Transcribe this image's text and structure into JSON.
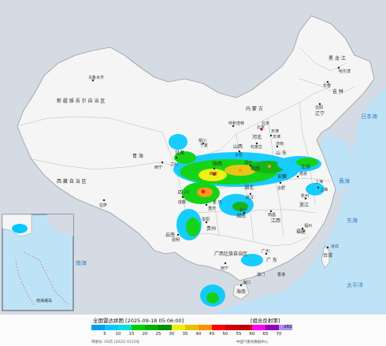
{
  "map": {
    "provinces": [
      "黑 龙 江",
      "吉 林",
      "辽宁",
      "内 蒙 古",
      "北京",
      "天津",
      "河北",
      "山西",
      "山 东",
      "河南",
      "陕西",
      "宁夏",
      "甘肃",
      "青 海",
      "新 疆 维 吾 尔 自 治 区",
      "西 藏 自 治 区",
      "四 川",
      "重 庆",
      "湖北",
      "湖南",
      "江西",
      "安徽",
      "江苏",
      "上海",
      "浙江",
      "福建",
      "台湾",
      "广 东",
      "广西壮族自治区",
      "贵州",
      "云南",
      "海南",
      "香港",
      "澳门"
    ],
    "cities": [
      "乌鲁木齐",
      "哈尔滨",
      "长春",
      "沈阳",
      "呼和浩特",
      "北京",
      "天津",
      "石家庄",
      "太原",
      "济南",
      "郑州",
      "西安",
      "银川",
      "兰州",
      "西宁",
      "拉萨",
      "成都",
      "重庆",
      "武汉",
      "长沙",
      "南昌",
      "合肥",
      "南京",
      "上海",
      "杭州",
      "福州",
      "台北",
      "广州",
      "南宁",
      "贵阳",
      "昆明",
      "海口"
    ],
    "seas": [
      "日本海",
      "黄海",
      "东海",
      "太平洋",
      "南海"
    ],
    "inset_seas": [
      "南海诸岛"
    ]
  },
  "legend": {
    "title": "全国雷达拼图 [2025-09-18 05:06:00]",
    "product": "[组合反射率]",
    "unit": "dBZ",
    "ticks": [
      "5",
      "10",
      "15",
      "20",
      "25",
      "30",
      "35",
      "40",
      "45",
      "50",
      "55",
      "60",
      "65",
      "70"
    ],
    "colors": [
      "#00a0f0",
      "#00c8ff",
      "#00e0e0",
      "#00d000",
      "#00b000",
      "#009000",
      "#f0f000",
      "#e8c000",
      "#ff9000",
      "#ff0000",
      "#d00000",
      "#c00000",
      "#ff00f0",
      "#9600b4",
      "#ad90f0"
    ],
    "review": "审图号: GS京 (2022) 0372号",
    "source": "中国气象局数据中心"
  }
}
